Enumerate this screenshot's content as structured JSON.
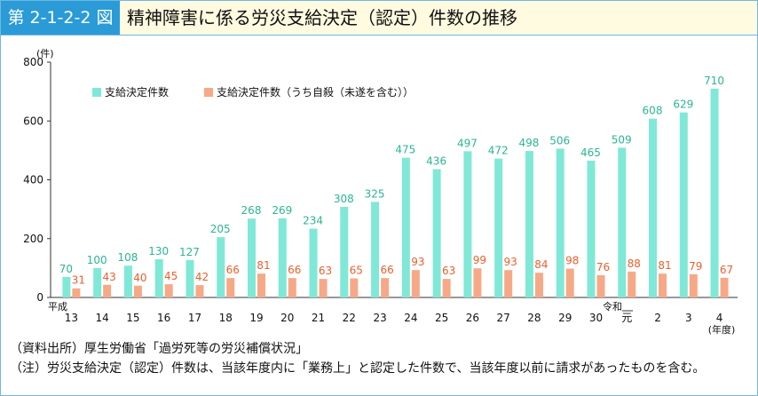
{
  "figure": {
    "label": "第 2-1-2-2 図"
  },
  "chart_data": {
    "type": "bar",
    "title": "精神障害に係る労災支給決定（認定）件数の推移",
    "ylabel": "(件)",
    "xlabel": "(年度)",
    "ylim": [
      0,
      800
    ],
    "yticks": [
      0,
      200,
      400,
      600,
      800
    ],
    "era_labels": {
      "heisei": "平成",
      "reiwa": "令和"
    },
    "categories": [
      "13",
      "14",
      "15",
      "16",
      "17",
      "18",
      "19",
      "20",
      "21",
      "22",
      "23",
      "24",
      "25",
      "26",
      "27",
      "28",
      "29",
      "30",
      "元",
      "2",
      "3",
      "4"
    ],
    "series": [
      {
        "name": "支給決定件数",
        "color": "#80e8d6",
        "label_color": "#2bb594",
        "values": [
          70,
          100,
          108,
          130,
          127,
          205,
          268,
          269,
          234,
          308,
          325,
          475,
          436,
          497,
          472,
          498,
          506,
          465,
          509,
          608,
          629,
          710
        ]
      },
      {
        "name": "支給決定件数（うち自殺（未遂を含む））",
        "color": "#f7a987",
        "label_color": "#ec5f2d",
        "values": [
          31,
          43,
          40,
          45,
          42,
          66,
          81,
          66,
          63,
          65,
          66,
          93,
          63,
          99,
          93,
          84,
          98,
          76,
          88,
          81,
          79,
          67
        ]
      }
    ],
    "legend_position": "top-left",
    "grid": false,
    "data_labels": true
  },
  "notes": {
    "source": "（資料出所）厚生労働省「過労死等の労災補償状況」",
    "note": "（注）労災支給決定（認定）件数は、当該年度内に「業務上」と認定した件数で、当該年度以前に請求があったものを含む。"
  }
}
